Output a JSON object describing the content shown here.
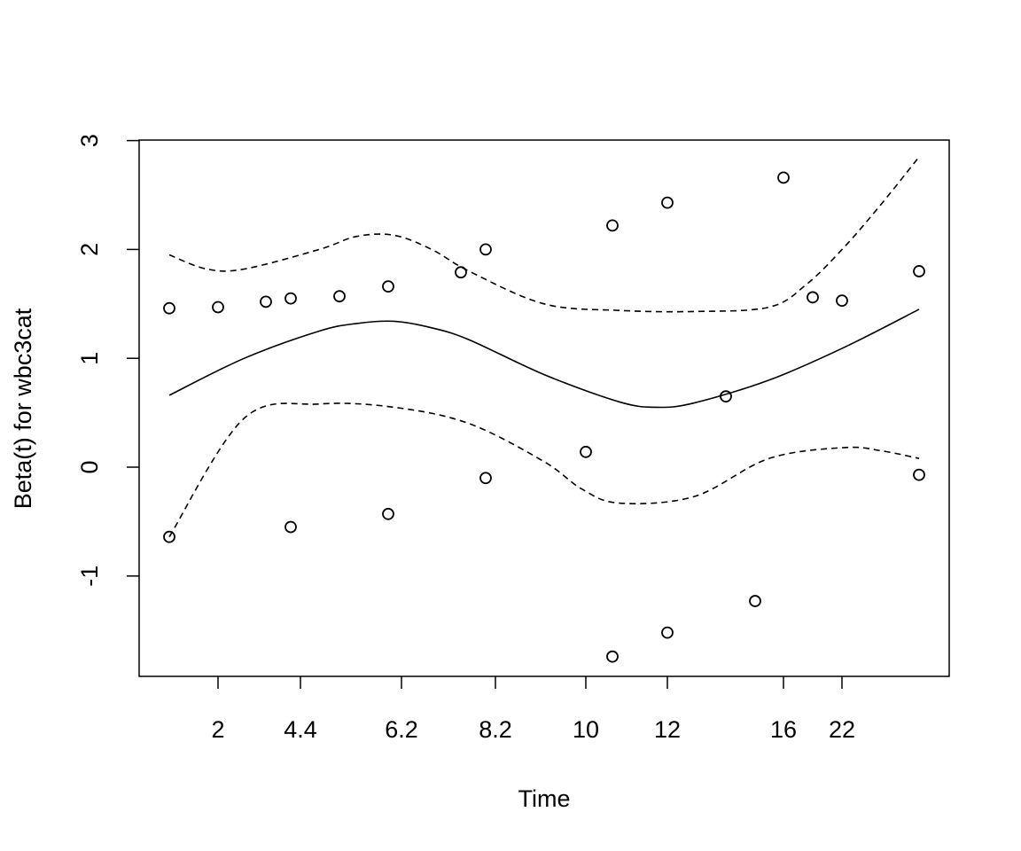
{
  "chart_data": {
    "type": "scatter",
    "title": "",
    "xlabel": "Time",
    "ylabel": "Beta(t) for wbc3cat",
    "x_tick_labels": [
      "2",
      "4.4",
      "6.2",
      "8.2",
      "10",
      "12",
      "16",
      "22"
    ],
    "y_ticks": [
      -1,
      0,
      1,
      2,
      3
    ],
    "y_tick_labels": [
      "-1",
      "0",
      "1",
      "2",
      "3"
    ],
    "ylim": [
      -1.9,
      3.0
    ],
    "points": [
      {
        "t": 1,
        "y": 1.46
      },
      {
        "t": 1,
        "y": -0.64
      },
      {
        "t": 2,
        "y": 1.47
      },
      {
        "t": 3,
        "y": 1.52
      },
      {
        "t": 4,
        "y": 1.55
      },
      {
        "t": 4,
        "y": -0.55
      },
      {
        "t": 5,
        "y": 1.57
      },
      {
        "t": 6,
        "y": 1.66
      },
      {
        "t": 6,
        "y": -0.43
      },
      {
        "t": 7,
        "y": 1.79
      },
      {
        "t": 8,
        "y": 2.0
      },
      {
        "t": 8,
        "y": -0.1
      },
      {
        "t": 10,
        "y": 0.14
      },
      {
        "t": 11,
        "y": 2.22
      },
      {
        "t": 11,
        "y": -1.74
      },
      {
        "t": 12,
        "y": 2.43
      },
      {
        "t": 12,
        "y": -1.52
      },
      {
        "t": 15,
        "y": 0.65
      },
      {
        "t": 16,
        "y": -1.23
      },
      {
        "t": 17,
        "y": 2.66
      },
      {
        "t": 19,
        "y": 1.56
      },
      {
        "t": 22,
        "y": 1.53
      },
      {
        "t": 33,
        "y": 1.8
      },
      {
        "t": 33,
        "y": -0.07
      }
    ],
    "series": [
      {
        "style": "solid",
        "x_frac": [
          0,
          0.1,
          0.2,
          0.25,
          0.3,
          0.35,
          0.4,
          0.5,
          0.6,
          0.65,
          0.7,
          0.8,
          0.9,
          1.0
        ],
        "y": [
          0.66,
          1.0,
          1.25,
          1.32,
          1.34,
          1.28,
          1.17,
          0.85,
          0.6,
          0.55,
          0.59,
          0.8,
          1.1,
          1.45
        ]
      },
      {
        "style": "dashed",
        "x_frac": [
          0,
          0.05,
          0.1,
          0.2,
          0.25,
          0.3,
          0.35,
          0.4,
          0.5,
          0.6,
          0.7,
          0.8,
          0.85,
          0.9,
          0.95,
          1.0
        ],
        "y": [
          1.95,
          1.82,
          1.82,
          2.0,
          2.12,
          2.13,
          2.0,
          1.8,
          1.5,
          1.44,
          1.43,
          1.47,
          1.68,
          2.02,
          2.42,
          2.85
        ]
      },
      {
        "style": "dashed",
        "x_frac": [
          0,
          0.1,
          0.2,
          0.3,
          0.4,
          0.5,
          0.55,
          0.6,
          0.7,
          0.8,
          0.9,
          0.95,
          1.0
        ],
        "y": [
          -0.64,
          0.45,
          0.58,
          0.55,
          0.4,
          0.05,
          -0.2,
          -0.33,
          -0.27,
          0.08,
          0.18,
          0.15,
          0.08
        ]
      }
    ]
  }
}
